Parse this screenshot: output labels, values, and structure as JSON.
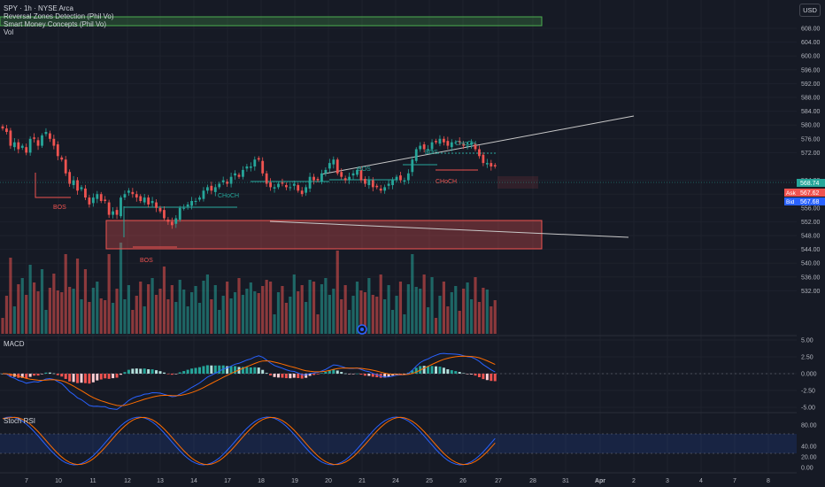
{
  "legend": {
    "symbol_line": "SPY · 1h · NYSE Arca",
    "indicator_1": "Reversal Zones Detection (Phil Vo)",
    "indicator_2": "Smart Money Concepts (Phil Vo)",
    "indicator_3": "Vol"
  },
  "currency_button": "USD",
  "price_axis": {
    "ticks": [
      608,
      604,
      600,
      596,
      592,
      588,
      584,
      580,
      576,
      572,
      564,
      560,
      556,
      552,
      548,
      544,
      540,
      536,
      532
    ],
    "tick_labels": [
      "608.00",
      "604.00",
      "600.00",
      "596.00",
      "592.00",
      "588.00",
      "584.00",
      "580.00",
      "576.00",
      "572.00",
      "564.00",
      "560.00",
      "556.00",
      "552.00",
      "548.00",
      "544.00",
      "540.00",
      "536.00",
      "532.00"
    ],
    "last_price_label": "568.74",
    "ask_label": "Ask",
    "ask_price": "567.62",
    "bid_label": "Bid",
    "bid_price": "567.68",
    "last_color": "#26a69a",
    "ask_color": "#ef5350",
    "bid_color": "#2962ff"
  },
  "macd_panel": {
    "title": "MACD",
    "tick_labels": [
      "5.00",
      "2.50",
      "0.000",
      "-2.50",
      "-5.00"
    ],
    "ticks": [
      5,
      2.5,
      0,
      -2.5,
      -5
    ]
  },
  "stoch_panel": {
    "title": "Stoch RSI",
    "tick_labels": [
      "80.00",
      "40.00",
      "20.00",
      "0.00"
    ],
    "ticks": [
      80,
      40,
      20,
      0
    ],
    "band": [
      20,
      80
    ]
  },
  "time_axis": {
    "labels": [
      "7",
      "10",
      "11",
      "12",
      "13",
      "14",
      "17",
      "18",
      "19",
      "20",
      "21",
      "24",
      "25",
      "26",
      "27",
      "28",
      "31",
      "Apr",
      "2",
      "3",
      "4",
      "7",
      "8"
    ]
  },
  "annotations": {
    "bos": "BOS",
    "choch": "CHoCH"
  },
  "colors": {
    "background": "#161a25",
    "up": "#26a69a",
    "down": "#ef5350",
    "macd_line": "#2962ff",
    "signal_line": "#ff6d00",
    "zone_red": "#ef5350",
    "zone_green": "#4caf50",
    "grid": "#242833"
  }
}
